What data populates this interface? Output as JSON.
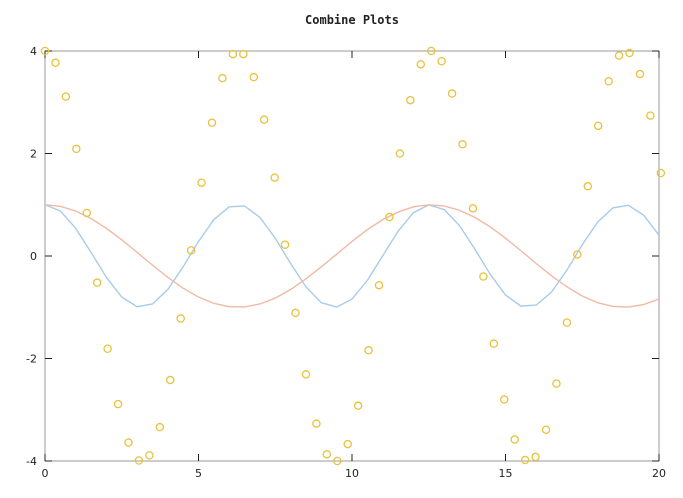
{
  "chart_data": {
    "type": "line",
    "title": "Combine Plots",
    "xlabel": "",
    "ylabel": "",
    "xlim": [
      0,
      20
    ],
    "ylim": [
      -4,
      4
    ],
    "xticks": [
      0,
      5,
      10,
      15,
      20
    ],
    "yticks": [
      -4,
      -2,
      0,
      2,
      4
    ],
    "grid": false,
    "legend": "none",
    "series": [
      {
        "kind": "line",
        "color": "#a9cbea",
        "x": [
          0,
          0.5,
          1,
          1.5,
          2,
          2.5,
          3,
          3.5,
          4,
          4.5,
          5,
          5.5,
          6,
          6.5,
          7,
          7.5,
          8,
          8.5,
          9,
          9.5,
          10,
          10.5,
          11,
          11.5,
          12,
          12.5,
          13,
          13.5,
          14,
          14.5,
          15,
          15.5,
          16,
          16.5,
          17,
          17.5,
          18,
          18.5,
          19,
          19.5,
          20
        ],
        "y": [
          1,
          0.878,
          0.54,
          0.071,
          -0.416,
          -0.801,
          -0.99,
          -0.936,
          -0.654,
          -0.211,
          0.284,
          0.709,
          0.96,
          0.977,
          0.754,
          0.347,
          -0.146,
          -0.602,
          -0.911,
          -0.997,
          -0.839,
          -0.476,
          0.004,
          0.483,
          0.844,
          0.998,
          0.907,
          0.595,
          0.137,
          -0.355,
          -0.76,
          -0.978,
          -0.958,
          -0.703,
          -0.275,
          0.22,
          0.66,
          0.939,
          0.989,
          0.796,
          0.408
        ]
      },
      {
        "kind": "line",
        "color": "#f2b9a5",
        "x": [
          0,
          0.5,
          1,
          1.5,
          2,
          2.5,
          3,
          3.5,
          4,
          4.5,
          5,
          5.5,
          6,
          6.5,
          7,
          7.5,
          8,
          8.5,
          9,
          9.5,
          10,
          10.5,
          11,
          11.5,
          12,
          12.5,
          13,
          13.5,
          14,
          14.5,
          15,
          15.5,
          16,
          16.5,
          17,
          17.5,
          18,
          18.5,
          19,
          19.5,
          20
        ],
        "y": [
          1,
          0.969,
          0.878,
          0.732,
          0.54,
          0.315,
          0.071,
          -0.178,
          -0.416,
          -0.628,
          -0.801,
          -0.924,
          -0.99,
          -0.994,
          -0.936,
          -0.821,
          -0.654,
          -0.446,
          -0.211,
          0.036,
          0.284,
          0.515,
          0.709,
          0.857,
          0.96,
          0.999,
          0.977,
          0.893,
          0.754,
          0.569,
          0.347,
          0.105,
          -0.146,
          -0.387,
          -0.602,
          -0.78,
          -0.911,
          -0.985,
          -0.997,
          -0.947,
          -0.839
        ]
      },
      {
        "kind": "scatter",
        "color": "#e8c23c",
        "x": [
          0,
          0.34,
          0.68,
          1.02,
          1.36,
          1.7,
          2.04,
          2.38,
          2.72,
          3.06,
          3.4,
          3.74,
          4.08,
          4.42,
          4.76,
          5.1,
          5.44,
          5.78,
          6.12,
          6.46,
          6.8,
          7.14,
          7.48,
          7.82,
          8.16,
          8.5,
          8.84,
          9.18,
          9.52,
          9.86,
          10.2,
          10.54,
          10.88,
          11.22,
          11.56,
          11.9,
          12.24,
          12.58,
          12.92,
          13.26,
          13.6,
          13.94,
          14.28,
          14.62,
          14.96,
          15.3,
          15.64,
          15.98,
          16.32,
          16.66,
          17,
          17.34,
          17.68,
          18.02,
          18.36,
          18.7,
          19.04,
          19.38,
          19.72,
          20.06
        ],
        "y": [
          4,
          3.77,
          3.11,
          2.09,
          0.84,
          -0.52,
          -1.81,
          -2.89,
          -3.64,
          -3.99,
          -3.89,
          -3.34,
          -2.42,
          -1.22,
          0.11,
          1.43,
          2.6,
          3.47,
          3.94,
          3.94,
          3.49,
          2.66,
          1.53,
          0.22,
          -1.11,
          -2.31,
          -3.27,
          -3.87,
          -4,
          -3.67,
          -2.92,
          -1.84,
          -0.57,
          0.76,
          2,
          3.04,
          3.74,
          4,
          3.8,
          3.17,
          2.18,
          0.93,
          -0.4,
          -1.71,
          -2.8,
          -3.58,
          -3.98,
          -3.92,
          -3.39,
          -2.49,
          -1.3,
          0.03,
          1.36,
          2.54,
          3.41,
          3.91,
          3.96,
          3.55,
          2.74,
          1.62
        ]
      }
    ]
  }
}
